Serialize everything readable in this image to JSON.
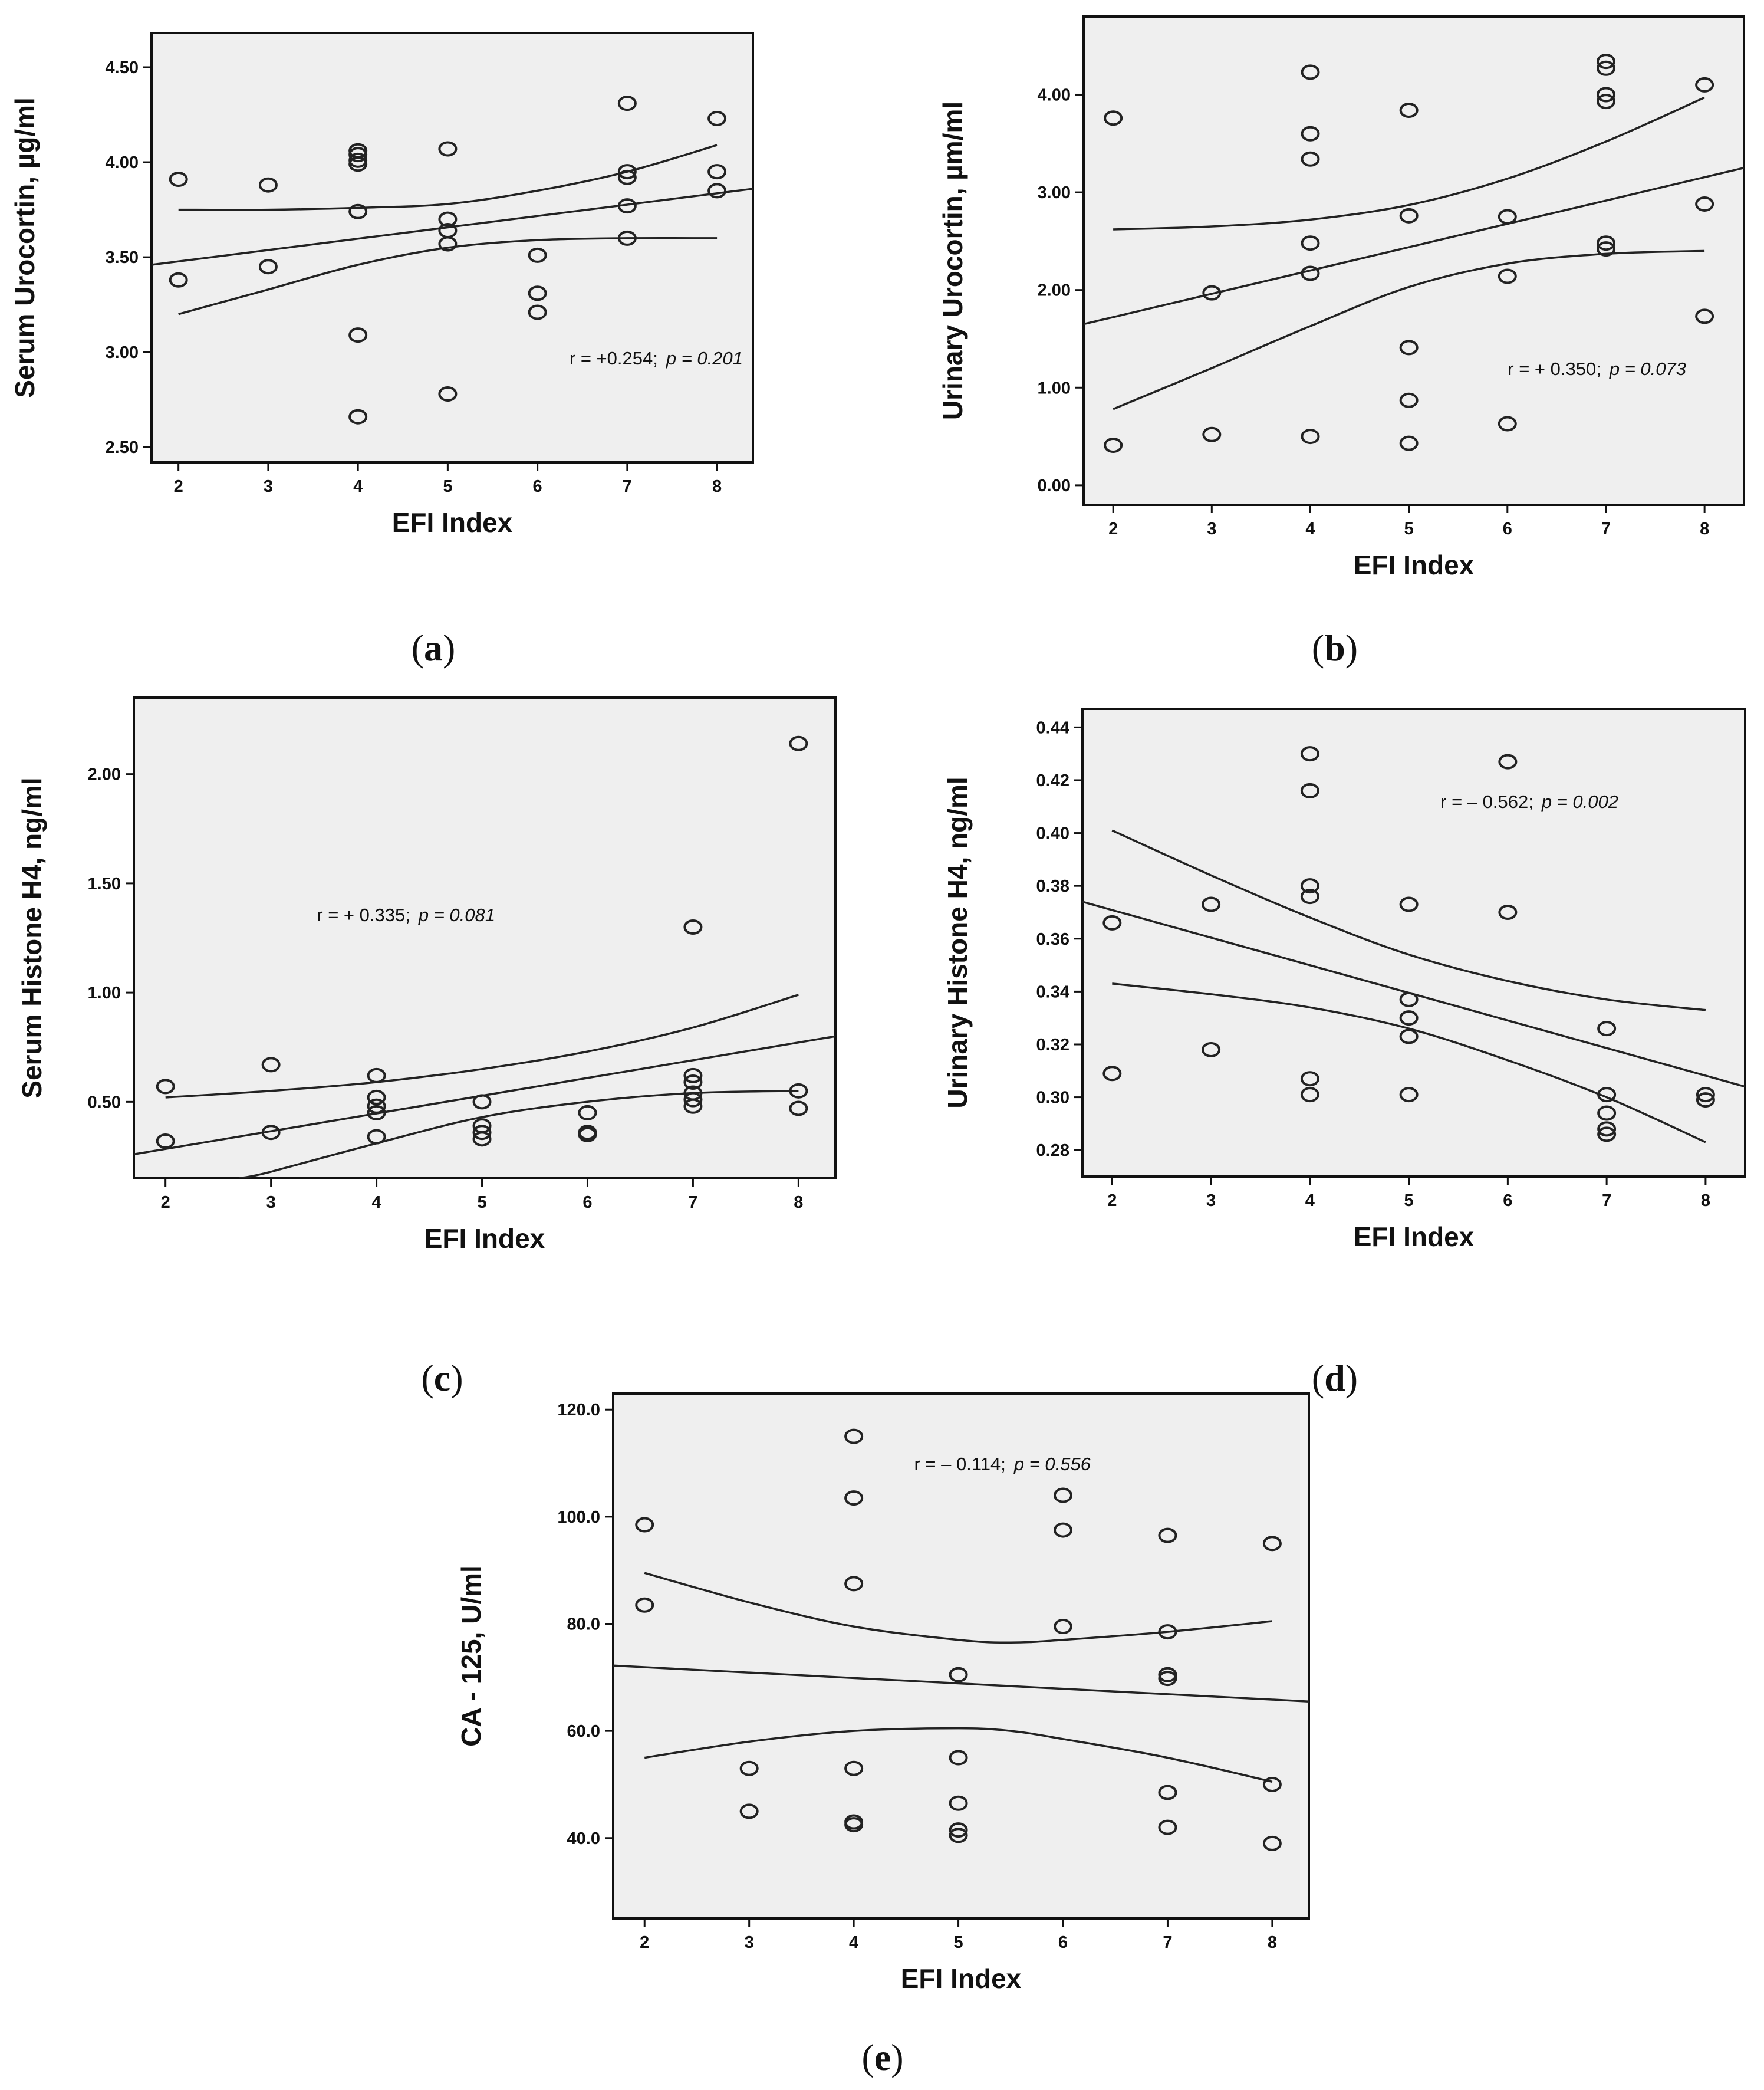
{
  "chart_data": [
    {
      "id": "a",
      "type": "scatter",
      "panel_label": "a",
      "xlabel": "EFI Index",
      "ylabel": "Serum Urocortin, µg/ml",
      "xlim": [
        1.7,
        8.4
      ],
      "ylim": [
        2.42,
        4.68
      ],
      "xticks": [
        2,
        3,
        4,
        5,
        6,
        7,
        8
      ],
      "yticks": [
        2.5,
        3.0,
        3.5,
        4.0,
        4.5
      ],
      "ytick_labels": [
        "2.50",
        "3.00",
        "3.50",
        "4.00",
        "4.50"
      ],
      "annotation": {
        "r": "r = +0.254;",
        "p": "p = 0.201"
      },
      "points": [
        [
          2,
          3.91
        ],
        [
          2,
          3.38
        ],
        [
          3,
          3.88
        ],
        [
          3,
          3.45
        ],
        [
          4,
          4.06
        ],
        [
          4,
          4.04
        ],
        [
          4,
          4.01
        ],
        [
          4,
          3.99
        ],
        [
          4,
          3.74
        ],
        [
          4,
          3.09
        ],
        [
          4,
          2.66
        ],
        [
          5,
          4.07
        ],
        [
          5,
          3.7
        ],
        [
          5,
          3.64
        ],
        [
          5,
          3.57
        ],
        [
          5,
          2.78
        ],
        [
          6,
          3.51
        ],
        [
          6,
          3.31
        ],
        [
          6,
          3.21
        ],
        [
          7,
          4.31
        ],
        [
          7,
          3.95
        ],
        [
          7,
          3.92
        ],
        [
          7,
          3.77
        ],
        [
          7,
          3.6
        ],
        [
          8,
          4.23
        ],
        [
          8,
          3.95
        ],
        [
          8,
          3.85
        ]
      ],
      "fit": {
        "x": [
          1.7,
          8.4
        ],
        "y": [
          3.46,
          3.86
        ]
      },
      "ci_upper": {
        "x": [
          2,
          3,
          4,
          5,
          6,
          7,
          8
        ],
        "y": [
          3.75,
          3.75,
          3.76,
          3.78,
          3.85,
          3.95,
          4.09
        ]
      },
      "ci_lower": {
        "x": [
          2,
          3,
          4,
          5,
          6,
          7,
          8
        ],
        "y": [
          3.2,
          3.33,
          3.46,
          3.55,
          3.59,
          3.6,
          3.6
        ]
      }
    },
    {
      "id": "b",
      "type": "scatter",
      "panel_label": "b",
      "xlabel": "EFI Index",
      "ylabel": "Urinary Urocortin, µm/ml",
      "xlim": [
        1.7,
        8.4
      ],
      "ylim": [
        -0.2,
        4.8
      ],
      "xticks": [
        2,
        3,
        4,
        5,
        6,
        7,
        8
      ],
      "yticks": [
        0,
        1,
        2,
        3,
        4
      ],
      "ytick_labels": [
        "0.00",
        "1.00",
        "2.00",
        "3.00",
        "4.00"
      ],
      "annotation": {
        "r": "r = + 0.350;",
        "p": "p = 0.073"
      },
      "points": [
        [
          2,
          3.76
        ],
        [
          2,
          0.41
        ],
        [
          3,
          1.97
        ],
        [
          3,
          0.52
        ],
        [
          4,
          4.23
        ],
        [
          4,
          3.6
        ],
        [
          4,
          3.34
        ],
        [
          4,
          2.48
        ],
        [
          4,
          2.17
        ],
        [
          4,
          0.5
        ],
        [
          5,
          3.84
        ],
        [
          5,
          2.76
        ],
        [
          5,
          1.41
        ],
        [
          5,
          0.87
        ],
        [
          5,
          0.43
        ],
        [
          6,
          2.75
        ],
        [
          6,
          2.14
        ],
        [
          6,
          0.63
        ],
        [
          7,
          4.34
        ],
        [
          7,
          4.27
        ],
        [
          7,
          4.0
        ],
        [
          7,
          3.93
        ],
        [
          7,
          2.48
        ],
        [
          7,
          2.42
        ],
        [
          8,
          4.1
        ],
        [
          8,
          2.88
        ],
        [
          8,
          1.73
        ]
      ],
      "fit": {
        "x": [
          1.7,
          8.4
        ],
        "y": [
          1.65,
          3.25
        ]
      },
      "ci_upper": {
        "x": [
          2,
          3,
          4,
          5,
          6,
          7,
          8
        ],
        "y": [
          2.62,
          2.65,
          2.72,
          2.87,
          3.14,
          3.52,
          3.97
        ]
      },
      "ci_lower": {
        "x": [
          2,
          3,
          4,
          5,
          6,
          7,
          8
        ],
        "y": [
          0.78,
          1.2,
          1.63,
          2.03,
          2.27,
          2.37,
          2.4
        ]
      }
    },
    {
      "id": "c",
      "type": "scatter",
      "panel_label": "c",
      "xlabel": "EFI Index",
      "ylabel": "Serum Histone H4, ng/ml",
      "xlim": [
        1.7,
        8.35
      ],
      "ylim": [
        0.15,
        2.35
      ],
      "xticks": [
        2,
        3,
        4,
        5,
        6,
        7,
        8
      ],
      "yticks": [
        0.5,
        1.0,
        1.5,
        2.0
      ],
      "ytick_labels": [
        "0.50",
        "1.00",
        "1.50",
        "2.00"
      ],
      "annotation": {
        "r": "r = + 0.335;",
        "p": "p = 0.081"
      },
      "points": [
        [
          2,
          0.57
        ],
        [
          2,
          0.32
        ],
        [
          3,
          0.67
        ],
        [
          3,
          0.36
        ],
        [
          4,
          0.62
        ],
        [
          4,
          0.52
        ],
        [
          4,
          0.48
        ],
        [
          4,
          0.45
        ],
        [
          4,
          0.34
        ],
        [
          5,
          0.5
        ],
        [
          5,
          0.39
        ],
        [
          5,
          0.36
        ],
        [
          5,
          0.33
        ],
        [
          6,
          0.45
        ],
        [
          6,
          0.36
        ],
        [
          6,
          0.35
        ],
        [
          7,
          1.3
        ],
        [
          7,
          0.62
        ],
        [
          7,
          0.59
        ],
        [
          7,
          0.54
        ],
        [
          7,
          0.51
        ],
        [
          7,
          0.48
        ],
        [
          8,
          2.14
        ],
        [
          8,
          0.55
        ],
        [
          8,
          0.47
        ]
      ],
      "fit": {
        "x": [
          1.7,
          8.35
        ],
        "y": [
          0.26,
          0.8
        ]
      },
      "ci_upper": {
        "x": [
          2,
          3,
          4,
          5,
          6,
          7,
          8
        ],
        "y": [
          0.52,
          0.55,
          0.59,
          0.65,
          0.73,
          0.84,
          0.99
        ]
      },
      "ci_lower": {
        "x": [
          2.7,
          3,
          4,
          5,
          6,
          7,
          8
        ],
        "y": [
          0.15,
          0.18,
          0.31,
          0.43,
          0.5,
          0.54,
          0.55
        ]
      }
    },
    {
      "id": "d",
      "type": "scatter",
      "panel_label": "d",
      "xlabel": "EFI Index",
      "ylabel": "Urinary Histone H4, ng/ml",
      "xlim": [
        1.7,
        8.4
      ],
      "ylim": [
        0.27,
        0.447
      ],
      "xticks": [
        2,
        3,
        4,
        5,
        6,
        7,
        8
      ],
      "yticks": [
        0.28,
        0.3,
        0.32,
        0.34,
        0.36,
        0.38,
        0.4,
        0.42,
        0.44
      ],
      "ytick_labels": [
        "0.28",
        "0.30",
        "0.32",
        "0.34",
        "0.36",
        "0.38",
        "0.40",
        "0.42",
        "0.44"
      ],
      "annotation": {
        "r": "r = – 0.562;",
        "p": "p = 0.002"
      },
      "points": [
        [
          2,
          0.366
        ],
        [
          2,
          0.309
        ],
        [
          3,
          0.373
        ],
        [
          3,
          0.318
        ],
        [
          4,
          0.43
        ],
        [
          4,
          0.416
        ],
        [
          4,
          0.38
        ],
        [
          4,
          0.376
        ],
        [
          4,
          0.307
        ],
        [
          4,
          0.301
        ],
        [
          5,
          0.373
        ],
        [
          5,
          0.337
        ],
        [
          5,
          0.33
        ],
        [
          5,
          0.323
        ],
        [
          5,
          0.301
        ],
        [
          6,
          0.427
        ],
        [
          6,
          0.37
        ],
        [
          7,
          0.326
        ],
        [
          7,
          0.301
        ],
        [
          7,
          0.294
        ],
        [
          7,
          0.288
        ],
        [
          7,
          0.286
        ],
        [
          8,
          0.301
        ],
        [
          8,
          0.299
        ]
      ],
      "fit": {
        "x": [
          1.7,
          8.4
        ],
        "y": [
          0.374,
          0.304
        ]
      },
      "ci_upper": {
        "x": [
          2,
          3,
          4,
          5,
          6,
          7,
          8
        ],
        "y": [
          0.401,
          0.384,
          0.368,
          0.354,
          0.344,
          0.337,
          0.333
        ]
      },
      "ci_lower": {
        "x": [
          2,
          3,
          4,
          5,
          6,
          7,
          8
        ],
        "y": [
          0.343,
          0.339,
          0.334,
          0.326,
          0.314,
          0.3,
          0.283
        ]
      }
    },
    {
      "id": "e",
      "type": "scatter",
      "panel_label": "e",
      "xlabel": "EFI Index",
      "ylabel": "CA - 125, U/ml",
      "xlim": [
        1.7,
        8.35
      ],
      "ylim": [
        25,
        123
      ],
      "xticks": [
        2,
        3,
        4,
        5,
        6,
        7,
        8
      ],
      "yticks": [
        40,
        60,
        80,
        100,
        120
      ],
      "ytick_labels": [
        "40.0",
        "60.0",
        "80.0",
        "100.0",
        "120.0"
      ],
      "annotation": {
        "r": "r = – 0.114;",
        "p": "p = 0.556"
      },
      "points": [
        [
          2,
          98.5
        ],
        [
          2,
          83.5
        ],
        [
          3,
          53.0
        ],
        [
          3,
          45.0
        ],
        [
          4,
          115.0
        ],
        [
          4,
          103.5
        ],
        [
          4,
          87.5
        ],
        [
          4,
          53.0
        ],
        [
          4,
          43.0
        ],
        [
          4,
          42.5
        ],
        [
          5,
          70.5
        ],
        [
          5,
          55.0
        ],
        [
          5,
          46.5
        ],
        [
          5,
          41.5
        ],
        [
          5,
          40.5
        ],
        [
          6,
          104.0
        ],
        [
          6,
          97.5
        ],
        [
          6,
          79.5
        ],
        [
          7,
          96.5
        ],
        [
          7,
          78.5
        ],
        [
          7,
          70.5
        ],
        [
          7,
          69.8
        ],
        [
          7,
          48.5
        ],
        [
          7,
          42.0
        ],
        [
          8,
          95.0
        ],
        [
          8,
          50.0
        ],
        [
          8,
          39.0
        ]
      ],
      "fit": {
        "x": [
          1.7,
          8.35
        ],
        "y": [
          72.2,
          65.5
        ]
      },
      "ci_upper": {
        "x": [
          2,
          3,
          4,
          5,
          5.5,
          6,
          7,
          8
        ],
        "y": [
          89.5,
          84.0,
          79.5,
          77.0,
          76.5,
          77.0,
          78.5,
          80.5
        ]
      },
      "ci_lower": {
        "x": [
          2,
          3,
          4,
          5,
          5.5,
          6,
          7,
          8
        ],
        "y": [
          55.0,
          58.0,
          60.0,
          60.5,
          60.0,
          58.5,
          55.0,
          50.5
        ]
      }
    }
  ]
}
